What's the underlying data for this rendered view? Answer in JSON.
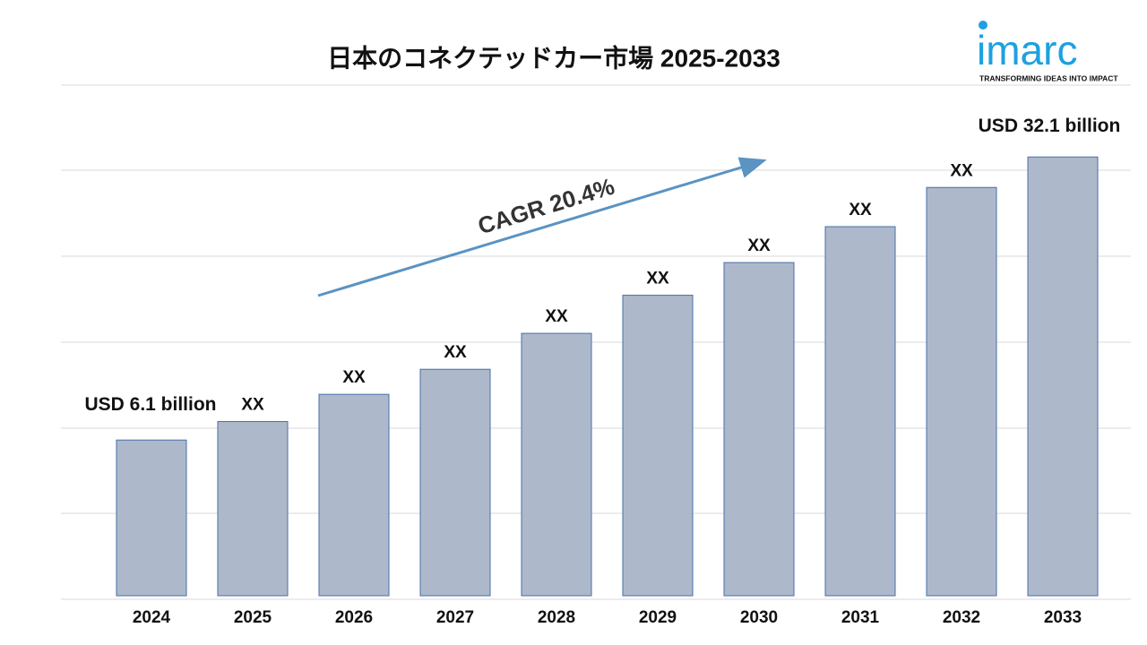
{
  "chart_data": {
    "type": "bar",
    "title": "日本のコネクテッドカー市場 2025-2033",
    "categories": [
      "2024",
      "2025",
      "2026",
      "2027",
      "2028",
      "2029",
      "2030",
      "2031",
      "2032",
      "2033"
    ],
    "values": [
      6.1,
      7.8,
      10.3,
      12.6,
      15.9,
      19.4,
      22.4,
      25.7,
      29.3,
      32.1
    ],
    "value_labels": [
      "USD 6.1 billion",
      "XX",
      "XX",
      "XX",
      "XX",
      "XX",
      "XX",
      "XX",
      "XX",
      "USD 32.1 billion"
    ],
    "color": "#adb9ca",
    "ylim": [
      -8.2,
      38.7
    ],
    "annotation": "CAGR 20.4%",
    "logo": {
      "name": "imarc",
      "tagline": "TRANSFORMING IDEAS INTO IMPACT"
    }
  }
}
